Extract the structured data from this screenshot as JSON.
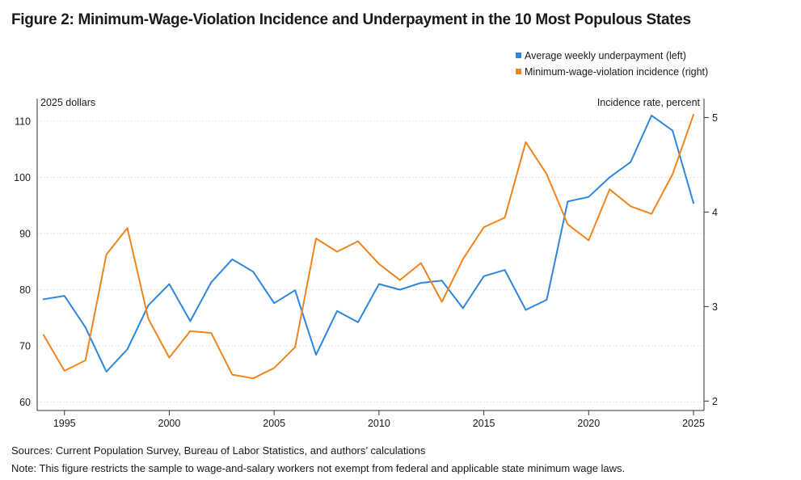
{
  "title": "Figure 2: Minimum-Wage-Violation Incidence and Underpayment in the 10 Most Populous States",
  "footnotes": {
    "sources": "Sources: Current Population Survey, Bureau of Labor Statistics, and authors’ calculations",
    "note": "Note: This figure restricts the sample to wage-and-salary workers not exempt from federal and applicable state minimum wage laws."
  },
  "colors": {
    "series_left": "#2e86de",
    "series_right": "#f0851e",
    "axis": "#333333",
    "grid": "#d9d9d9"
  },
  "chart_data": {
    "type": "line",
    "x": [
      1994,
      1995,
      1996,
      1997,
      1998,
      1999,
      2000,
      2001,
      2002,
      2003,
      2004,
      2005,
      2006,
      2007,
      2008,
      2009,
      2010,
      2011,
      2012,
      2013,
      2014,
      2015,
      2016,
      2017,
      2018,
      2019,
      2020,
      2021,
      2022,
      2023,
      2024,
      2025
    ],
    "x_ticks": [
      "1995",
      "2000",
      "2005",
      "2010",
      "2015",
      "2020",
      "2025"
    ],
    "x_tick_values": [
      1995,
      2000,
      2005,
      2010,
      2015,
      2020,
      2025
    ],
    "xlim": [
      1993.7,
      2025.5
    ],
    "y_left": {
      "label": "2025 dollars",
      "lim": [
        58.5,
        114
      ],
      "ticks": [
        "60",
        "70",
        "80",
        "90",
        "100",
        "110"
      ],
      "tick_values": [
        60,
        70,
        80,
        90,
        100,
        110
      ]
    },
    "y_right": {
      "label": "Incidence rate, percent",
      "lim": [
        1.9,
        5.2
      ],
      "ticks": [
        "2",
        "3",
        "4",
        "5"
      ],
      "tick_values": [
        2,
        3,
        4,
        5
      ]
    },
    "grid": "horizontal dotted at left-axis ticks",
    "legend": {
      "position": "top-right"
    },
    "series": [
      {
        "name": "Average weekly underpayment (left)",
        "axis": "left",
        "values": [
          78.3,
          78.9,
          73.3,
          65.4,
          69.4,
          77.2,
          81.0,
          74.4,
          81.3,
          85.4,
          83.2,
          77.6,
          79.9,
          68.4,
          76.2,
          74.2,
          81.0,
          80.0,
          81.2,
          81.6,
          76.7,
          82.4,
          83.5,
          76.4,
          78.2,
          95.7,
          96.5,
          100.0,
          102.7,
          111.0,
          108.3,
          95.4
        ]
      },
      {
        "name": "Minimum-wage-violation incidence (right)",
        "axis": "right",
        "values": [
          2.7,
          2.32,
          2.43,
          3.55,
          3.83,
          2.87,
          2.46,
          2.74,
          2.72,
          2.28,
          2.24,
          2.35,
          2.57,
          3.72,
          3.58,
          3.69,
          3.45,
          3.28,
          3.46,
          3.05,
          3.5,
          3.84,
          3.94,
          4.74,
          4.4,
          3.87,
          3.7,
          4.24,
          4.06,
          3.98,
          4.4,
          5.03
        ]
      }
    ]
  }
}
